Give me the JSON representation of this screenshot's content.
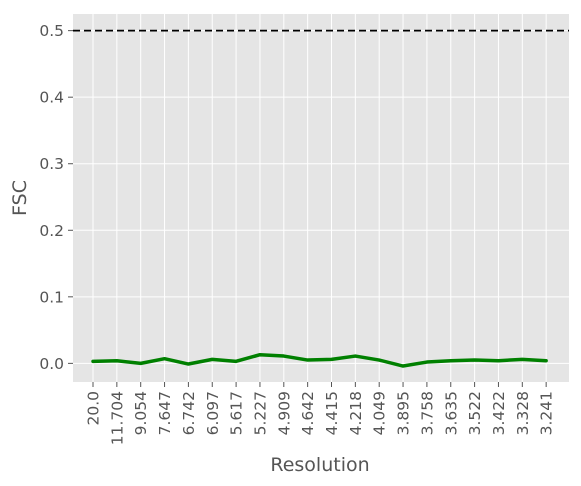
{
  "chart_data": {
    "type": "line",
    "title": "",
    "xlabel": "Resolution",
    "ylabel": "FSC",
    "categories": [
      "20.0",
      "11.704",
      "9.054",
      "7.647",
      "6.742",
      "6.097",
      "5.617",
      "5.227",
      "4.909",
      "4.642",
      "4.415",
      "4.218",
      "4.049",
      "3.895",
      "3.758",
      "3.635",
      "3.522",
      "3.422",
      "3.328",
      "3.241"
    ],
    "ylim": [
      -0.028,
      0.525
    ],
    "yticks": [
      "0.0",
      "0.1",
      "0.2",
      "0.3",
      "0.4",
      "0.5"
    ],
    "yticks_values": [
      0.0,
      0.1,
      0.2,
      0.3,
      0.4,
      0.5
    ],
    "grid": true,
    "series": [
      {
        "color": "#008000",
        "style": "solid",
        "values": [
          0.003,
          0.004,
          0.0,
          0.007,
          -0.001,
          0.006,
          0.003,
          0.013,
          0.011,
          0.005,
          0.006,
          0.011,
          0.005,
          -0.004,
          0.002,
          0.004,
          0.005,
          0.004,
          0.006,
          0.004
        ]
      }
    ],
    "reference_lines": [
      {
        "orientation": "horizontal",
        "y": 0.5,
        "color": "#000000",
        "style": "dashed"
      }
    ],
    "colors": {
      "background": "#e5e5e5",
      "grid": "#ffffff",
      "text": "#555555"
    }
  }
}
